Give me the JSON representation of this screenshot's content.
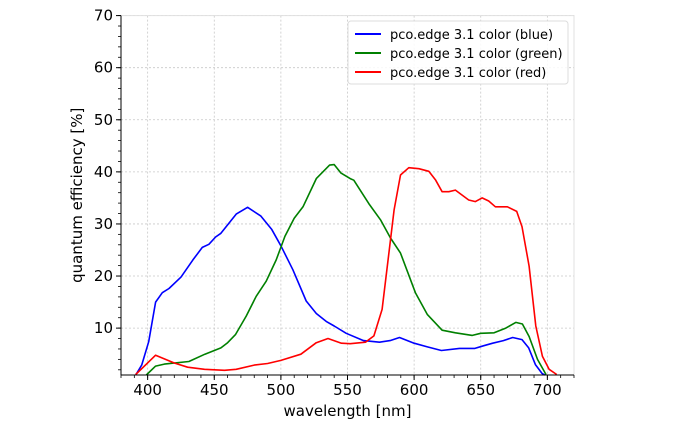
{
  "chart_data": {
    "type": "line",
    "title": "",
    "xlabel": "wavelength [nm]",
    "ylabel": "quantum efficiency [%]",
    "xlim": [
      380,
      720
    ],
    "ylim": [
      1,
      70
    ],
    "xticks": [
      400,
      450,
      500,
      550,
      600,
      650,
      700
    ],
    "yticks": [
      10,
      20,
      30,
      40,
      50,
      60,
      70
    ],
    "grid": true,
    "legend_position": "top-right",
    "series": [
      {
        "name": "pco.edge 3.1 color (blue)",
        "color": "#0000ff",
        "points": [
          [
            391,
            1
          ],
          [
            395.5,
            2.9
          ],
          [
            400.8,
            7.4
          ],
          [
            406,
            15
          ],
          [
            411,
            16.8
          ],
          [
            416,
            17.6
          ],
          [
            425,
            19.8
          ],
          [
            434,
            23.1
          ],
          [
            441,
            25.5
          ],
          [
            446,
            26.1
          ],
          [
            451,
            27.5
          ],
          [
            455,
            28.2
          ],
          [
            466.5,
            31.9
          ],
          [
            475,
            33.2
          ],
          [
            485,
            31.5
          ],
          [
            493,
            29
          ],
          [
            500,
            25.8
          ],
          [
            509,
            21.2
          ],
          [
            519,
            15.2
          ],
          [
            526.6,
            12.8
          ],
          [
            534,
            11.3
          ],
          [
            540,
            10.4
          ],
          [
            549,
            9
          ],
          [
            562,
            7.6
          ],
          [
            574,
            7.3
          ],
          [
            582,
            7.6
          ],
          [
            589,
            8.2
          ],
          [
            600,
            7.1
          ],
          [
            610,
            6.4
          ],
          [
            620.5,
            5.7
          ],
          [
            634,
            6.1
          ],
          [
            645.6,
            6.1
          ],
          [
            652,
            6.6
          ],
          [
            659,
            7.1
          ],
          [
            667,
            7.6
          ],
          [
            674,
            8.2
          ],
          [
            681,
            7.8
          ],
          [
            686,
            6.2
          ],
          [
            691,
            3
          ],
          [
            696,
            1.3
          ],
          [
            698,
            1
          ]
        ]
      },
      {
        "name": "pco.edge 3.1 color (green)",
        "color": "#008000",
        "points": [
          [
            399,
            1
          ],
          [
            406,
            2.7
          ],
          [
            412.6,
            3.1
          ],
          [
            431,
            3.6
          ],
          [
            443,
            5
          ],
          [
            455,
            6.2
          ],
          [
            460,
            7.2
          ],
          [
            466,
            8.8
          ],
          [
            474,
            12.3
          ],
          [
            481.5,
            16.1
          ],
          [
            489,
            19
          ],
          [
            496.5,
            23.1
          ],
          [
            503,
            27.6
          ],
          [
            510,
            31.1
          ],
          [
            516.6,
            33.3
          ],
          [
            526.6,
            38.7
          ],
          [
            536.6,
            41.3
          ],
          [
            540,
            41.4
          ],
          [
            545,
            39.8
          ],
          [
            552,
            38.7
          ],
          [
            554.7,
            38.4
          ],
          [
            566,
            33.9
          ],
          [
            574.8,
            30.8
          ],
          [
            582.3,
            27.3
          ],
          [
            589.8,
            24.4
          ],
          [
            601,
            16.8
          ],
          [
            610,
            12.6
          ],
          [
            621,
            9.6
          ],
          [
            631,
            9.1
          ],
          [
            643.7,
            8.6
          ],
          [
            650,
            9
          ],
          [
            660,
            9.1
          ],
          [
            668.8,
            10
          ],
          [
            676.3,
            11.1
          ],
          [
            681.3,
            10.8
          ],
          [
            686.3,
            8.4
          ],
          [
            692.6,
            4
          ],
          [
            699,
            1.1
          ]
        ]
      },
      {
        "name": "pco.edge 3.1 color (red)",
        "color": "#ff0000",
        "points": [
          [
            391,
            1.1
          ],
          [
            406,
            4.8
          ],
          [
            420,
            3.3
          ],
          [
            430,
            2.5
          ],
          [
            442.7,
            2.1
          ],
          [
            457.7,
            1.9
          ],
          [
            466.5,
            2.1
          ],
          [
            480,
            2.9
          ],
          [
            490,
            3.2
          ],
          [
            500,
            3.8
          ],
          [
            515,
            5
          ],
          [
            526.6,
            7.2
          ],
          [
            535.4,
            8
          ],
          [
            545.4,
            7.1
          ],
          [
            552,
            7
          ],
          [
            563.5,
            7.3
          ],
          [
            569.8,
            8.5
          ],
          [
            576,
            13.6
          ],
          [
            585,
            32.7
          ],
          [
            589.8,
            39.4
          ],
          [
            596,
            40.8
          ],
          [
            603.6,
            40.6
          ],
          [
            611,
            40.1
          ],
          [
            616,
            38.5
          ],
          [
            621,
            36.2
          ],
          [
            626,
            36.2
          ],
          [
            631,
            36.5
          ],
          [
            641,
            34.6
          ],
          [
            646,
            34.3
          ],
          [
            651,
            35
          ],
          [
            656,
            34.4
          ],
          [
            661,
            33.3
          ],
          [
            670,
            33.3
          ],
          [
            677,
            32.4
          ],
          [
            681,
            29.5
          ],
          [
            686.3,
            21.9
          ],
          [
            691.3,
            10.4
          ],
          [
            696.3,
            4.6
          ],
          [
            701.3,
            2.1
          ],
          [
            707,
            1.1
          ]
        ]
      }
    ]
  }
}
